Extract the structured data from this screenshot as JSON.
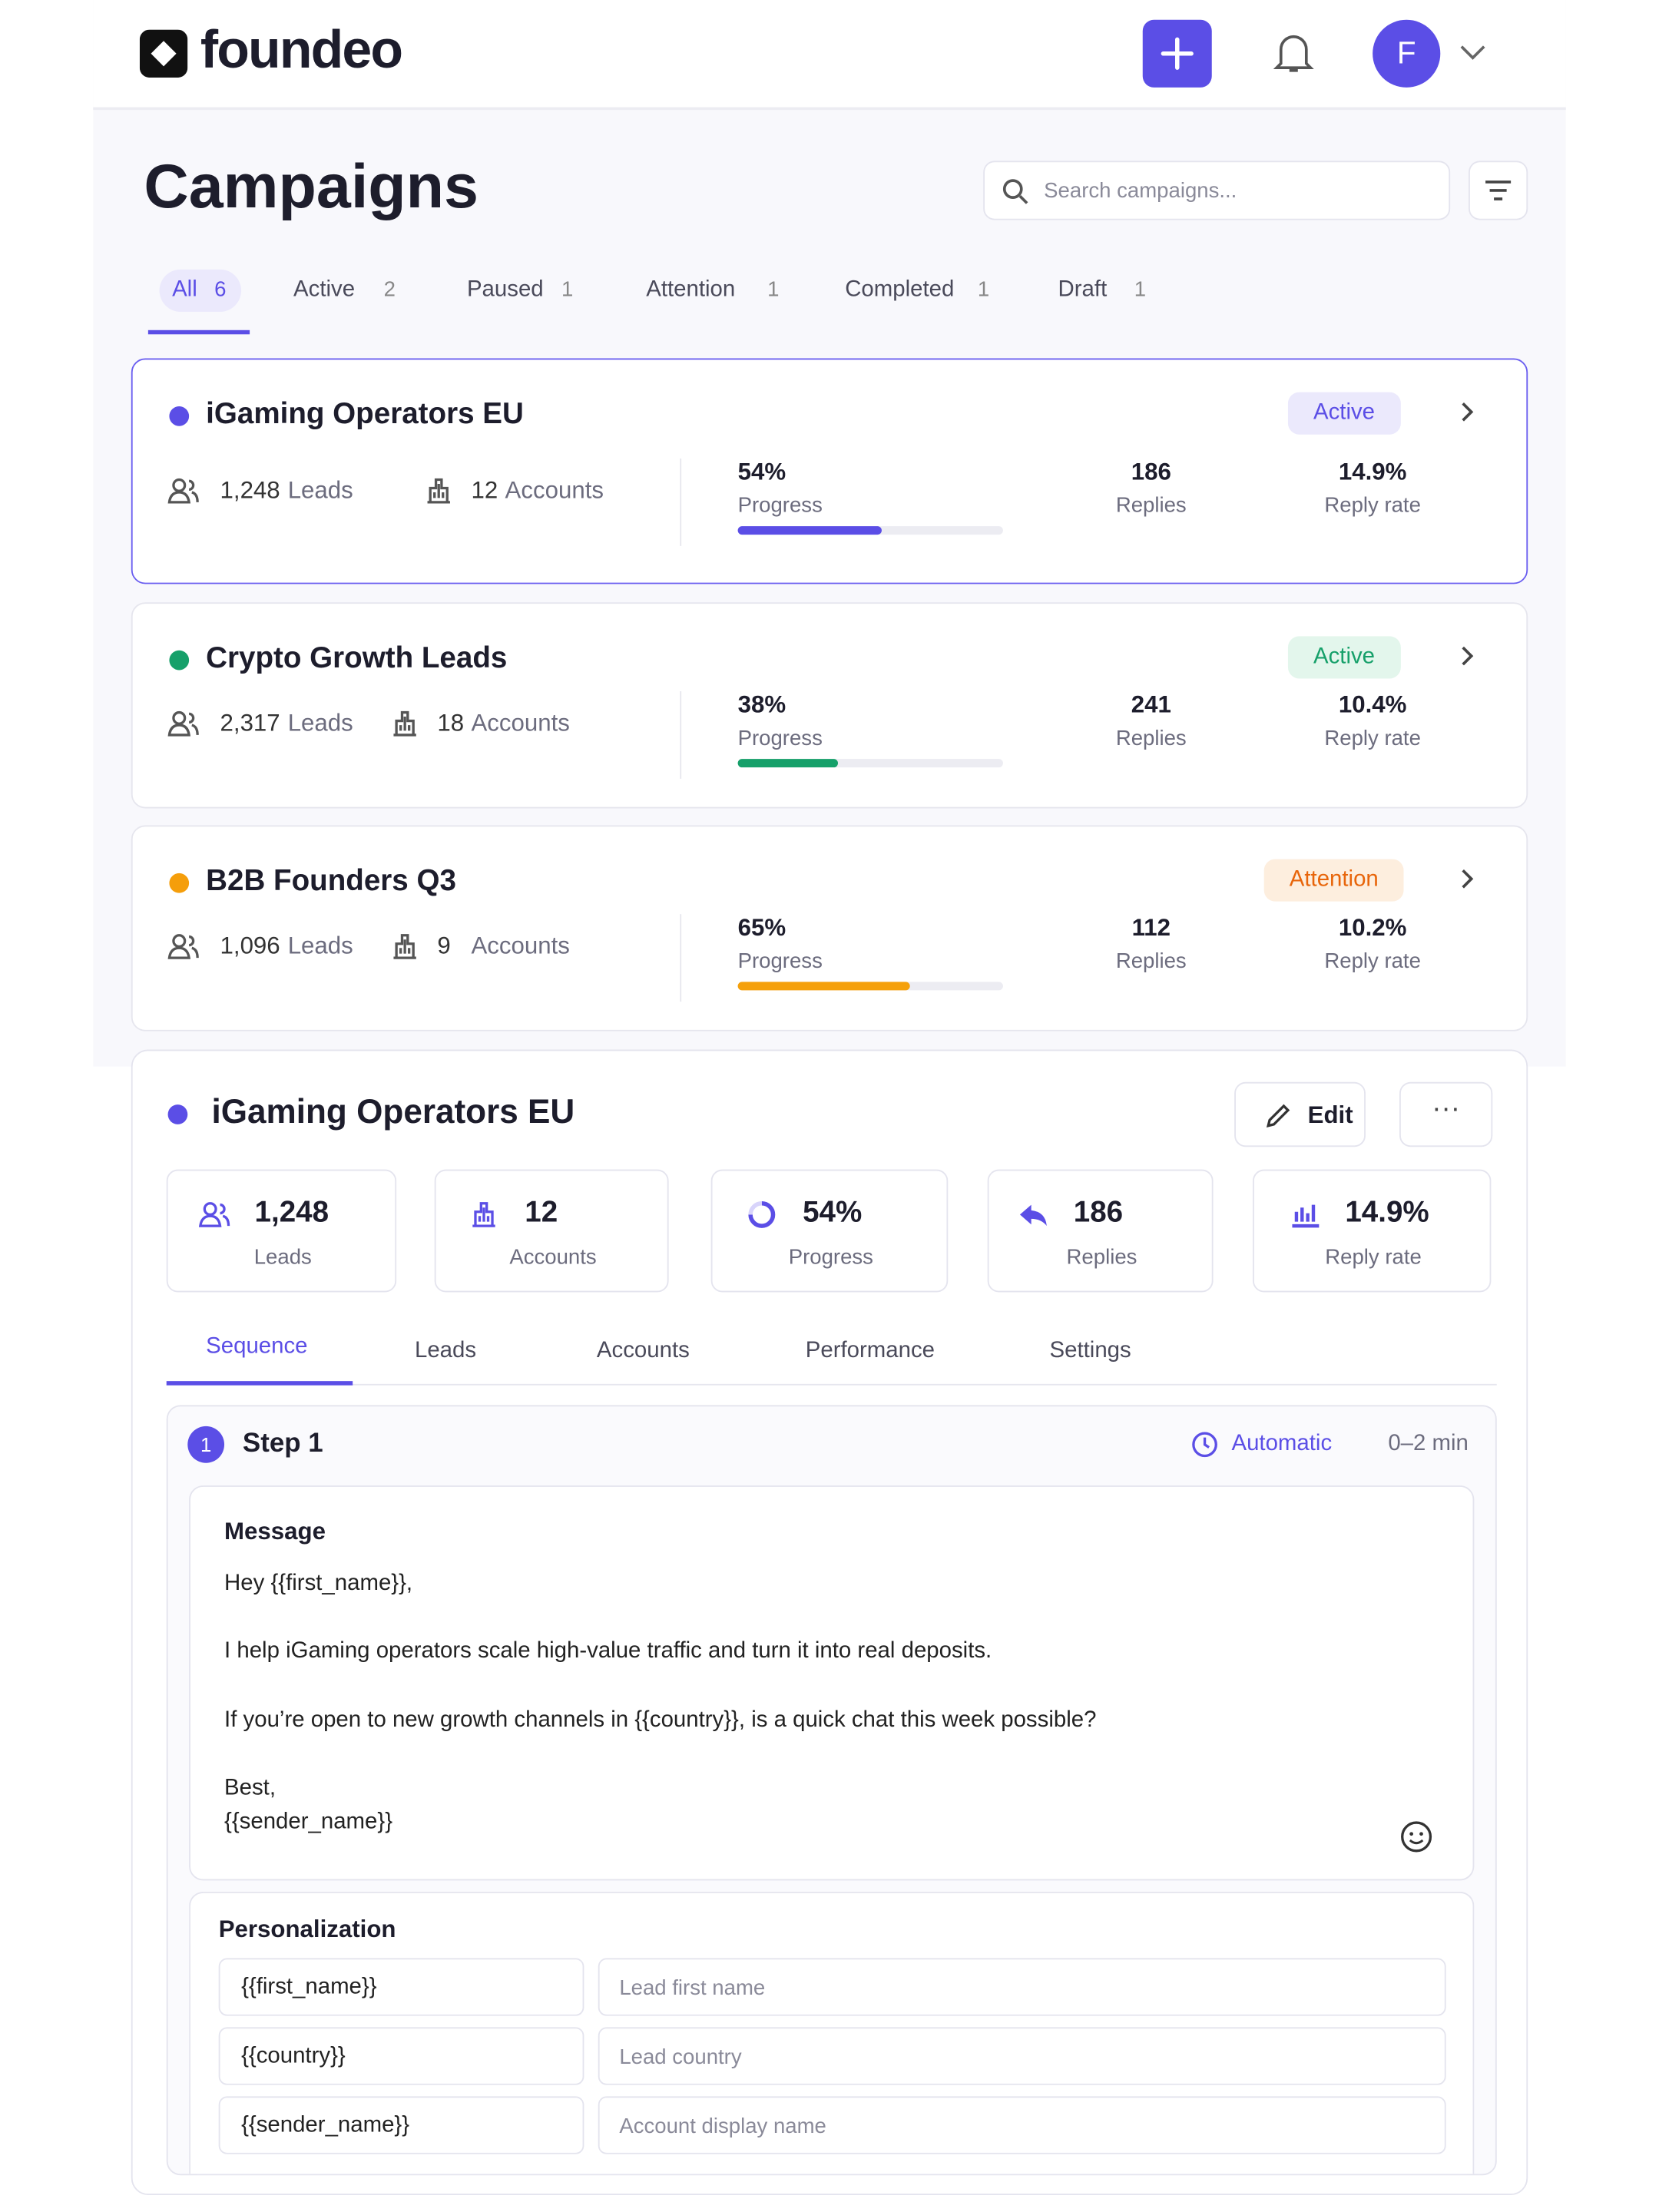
{
  "header": {
    "logo": "foundeo",
    "avatar": "F"
  },
  "page": {
    "title": "Campaigns",
    "search_placeholder": "Search campaigns..."
  },
  "tabs": [
    {
      "label": "All",
      "count": 6
    },
    {
      "label": "Active",
      "count": 2
    },
    {
      "label": "Paused",
      "count": 1
    },
    {
      "label": "Attention",
      "count": 1
    },
    {
      "label": "Completed",
      "count": 1
    },
    {
      "label": "Draft",
      "count": 1
    }
  ],
  "campaigns": [
    {
      "name": "iGaming Operators EU",
      "status": "Active",
      "leads": "1,248",
      "leads_label": "Leads",
      "accounts": 12,
      "accounts_label": "Accounts",
      "progress": 54,
      "progress_label": "54%",
      "progress_text": "Progress",
      "replies": 186,
      "replies_label": "Replies",
      "reply_rate": "14.9%",
      "reply_rate_label": "Reply rate"
    },
    {
      "name": "Crypto Growth Leads",
      "status": "Active",
      "leads": "2,317",
      "leads_label": "Leads",
      "accounts": 18,
      "accounts_label": "Accounts",
      "progress": 38,
      "progress_label": "38%",
      "progress_text": "Progress",
      "replies": 241,
      "replies_label": "Replies",
      "reply_rate": "10.4%",
      "reply_rate_label": "Reply rate"
    },
    {
      "name": "B2B Founders Q3",
      "status": "Attention",
      "leads": "1,096",
      "leads_label": "Leads",
      "accounts": 9,
      "accounts_label": "Accounts",
      "progress": 65,
      "progress_label": "65%",
      "progress_text": "Progress",
      "replies": 112,
      "replies_label": "Replies",
      "reply_rate": "10.2%",
      "reply_rate_label": "Reply rate"
    }
  ],
  "detail": {
    "title": "iGaming Operators EU",
    "edit": "Edit",
    "stats": [
      {
        "value": "1,248",
        "label": "Leads"
      },
      {
        "value": 12,
        "label": "Accounts"
      },
      {
        "value": "54%",
        "label": "Progress"
      },
      {
        "value": 186,
        "label": "Replies"
      },
      {
        "value": "14.9%",
        "label": "Reply rate"
      }
    ],
    "tabs": [
      "Sequence",
      "Leads",
      "Accounts",
      "Performance",
      "Settings"
    ],
    "step": {
      "number": 1,
      "title": "Step 1",
      "mode": "Automatic",
      "delay": "0–2 min",
      "message_title": "Message",
      "message_lines": [
        "Hey {{first_name}},",
        "I help iGaming operators scale high-value traffic and turn it into real deposits.",
        "If you’re open to new growth channels in {{country}}, is a quick chat this week possible?",
        "Best,",
        "{{sender_name}}"
      ]
    },
    "personalization": {
      "title": "Personalization",
      "rows": [
        [
          "{{first_name}}",
          "Lead first name"
        ],
        [
          "{{country}}",
          "Lead country"
        ],
        [
          "{{sender_name}}",
          "Account display name"
        ]
      ]
    }
  }
}
